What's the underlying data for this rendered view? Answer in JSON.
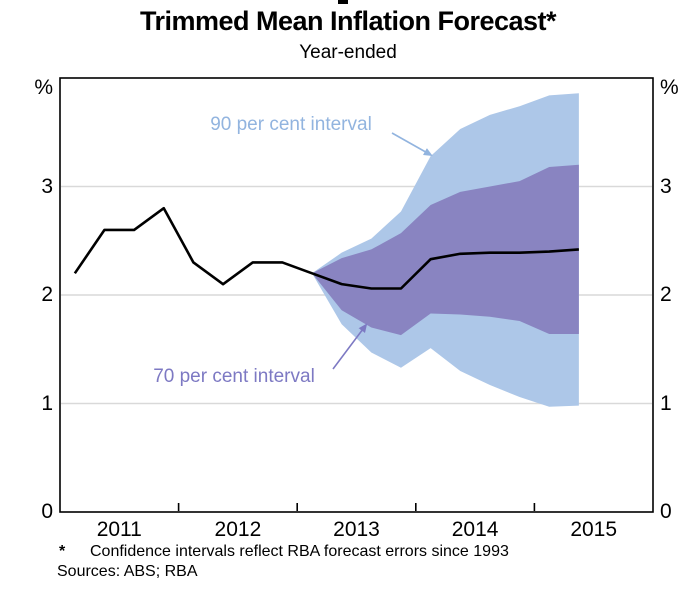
{
  "page": {
    "title": "Trimmed Mean Inflation Forecast*",
    "subtitle": "Year-ended"
  },
  "axis": {
    "unit_left": "%",
    "unit_right": "%",
    "ytick_labels": [
      "0",
      "1",
      "2",
      "3"
    ],
    "ytick_values": [
      0,
      1,
      2,
      3
    ],
    "xtick_labels": [
      "2011",
      "2012",
      "2013",
      "2014",
      "2015"
    ],
    "xtick_years": [
      2011,
      2012,
      2013,
      2014,
      2015
    ]
  },
  "annotations": {
    "band90_label": "90 per cent interval",
    "band70_label": "70 per cent interval"
  },
  "footnotes": {
    "marker": "*",
    "note": "Confidence intervals reflect RBA forecast errors since 1993",
    "sources": "Sources: ABS; RBA"
  },
  "colors": {
    "band90": "#ADC7E8",
    "band70": "#8984C1",
    "line": "#000000",
    "label90": "#92B4DF",
    "label70": "#7D79C3",
    "gridline": "#D9D9D9",
    "frame": "#000000"
  },
  "chart_data": {
    "type": "line",
    "subtype": "fan-chart",
    "title": "Trimmed Mean Inflation Forecast*",
    "subtitle": "Year-ended",
    "ylabel": "%",
    "ylim": [
      0,
      4
    ],
    "xlim": [
      2010.5,
      2015.5
    ],
    "yticks": [
      0,
      1,
      2,
      3
    ],
    "grid": "horizontal",
    "legend_position": "none",
    "series": [
      {
        "name": "Trimmed mean inflation (actual)",
        "type": "line",
        "color": "#000000",
        "x": [
          2010.625,
          2010.875,
          2011.125,
          2011.375,
          2011.625,
          2011.875,
          2012.125,
          2012.375,
          2012.625
        ],
        "y": [
          2.2,
          2.6,
          2.6,
          2.8,
          2.3,
          2.1,
          2.3,
          2.3,
          2.2
        ]
      },
      {
        "name": "Central forecast",
        "type": "line",
        "color": "#000000",
        "x": [
          2012.625,
          2012.875,
          2013.125,
          2013.375,
          2013.625,
          2013.875,
          2014.125,
          2014.375,
          2014.625,
          2014.875
        ],
        "y": [
          2.2,
          2.1,
          2.06,
          2.06,
          2.33,
          2.38,
          2.39,
          2.39,
          2.4,
          2.42
        ]
      },
      {
        "name": "90 per cent interval",
        "type": "band",
        "color": "#ADC7E8",
        "x": [
          2012.625,
          2012.875,
          2013.125,
          2013.375,
          2013.625,
          2013.875,
          2014.125,
          2014.375,
          2014.625,
          2014.875
        ],
        "lo": [
          2.2,
          1.73,
          1.47,
          1.33,
          1.51,
          1.3,
          1.17,
          1.06,
          0.97,
          0.98
        ],
        "hi": [
          2.2,
          2.39,
          2.52,
          2.77,
          3.28,
          3.53,
          3.66,
          3.74,
          3.84,
          3.86
        ]
      },
      {
        "name": "70 per cent interval",
        "type": "band",
        "color": "#8984C1",
        "x": [
          2012.625,
          2012.875,
          2013.125,
          2013.375,
          2013.625,
          2013.875,
          2014.125,
          2014.375,
          2014.625,
          2014.875
        ],
        "lo": [
          2.2,
          1.86,
          1.7,
          1.63,
          1.83,
          1.82,
          1.8,
          1.76,
          1.64,
          1.64
        ],
        "hi": [
          2.2,
          2.34,
          2.42,
          2.57,
          2.83,
          2.95,
          3.0,
          3.05,
          3.18,
          3.2
        ]
      }
    ]
  }
}
